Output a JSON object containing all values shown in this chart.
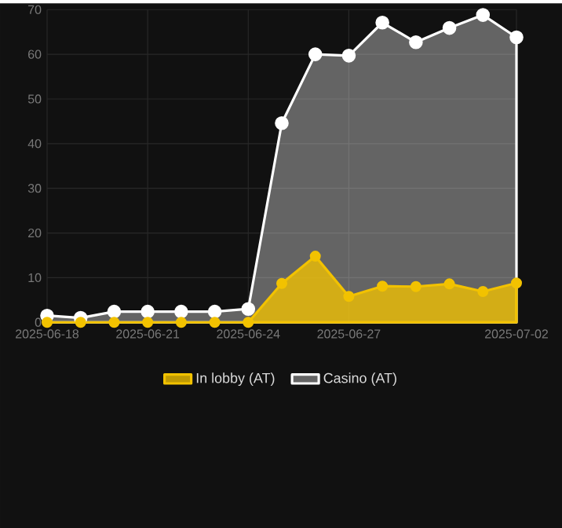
{
  "chart_data": {
    "type": "area",
    "x": [
      "2025-06-18",
      "2025-06-19",
      "2025-06-20",
      "2025-06-21",
      "2025-06-22",
      "2025-06-23",
      "2025-06-24",
      "2025-06-25",
      "2025-06-26",
      "2025-06-27",
      "2025-06-28",
      "2025-06-29",
      "2025-06-30",
      "2025-07-01",
      "2025-07-02"
    ],
    "series": [
      {
        "name": "In lobby (AT)",
        "color": "#f2c200",
        "values": [
          0,
          0,
          0,
          0,
          0,
          0,
          0,
          8.7,
          14.8,
          5.8,
          8.1,
          8,
          8.6,
          6.9,
          8.8
        ]
      },
      {
        "name": "Casino (AT)",
        "color": "#ffffff",
        "values": [
          1.5,
          1,
          2.4,
          2.4,
          2.4,
          2.4,
          3,
          44.6,
          60,
          59.7,
          67.1,
          62.7,
          65.9,
          68.8,
          63.8
        ]
      }
    ],
    "xlim": [
      "2025-06-18",
      "2025-07-02"
    ],
    "xticks": [
      "2025-06-18",
      "2025-06-21",
      "2025-06-24",
      "2025-06-27",
      "2025-07-02"
    ],
    "ylim": [
      0,
      70
    ],
    "yticks": [
      0,
      10,
      20,
      30,
      40,
      50,
      60,
      70
    ],
    "grid": true,
    "legend": "bottom",
    "marker": "circle"
  }
}
